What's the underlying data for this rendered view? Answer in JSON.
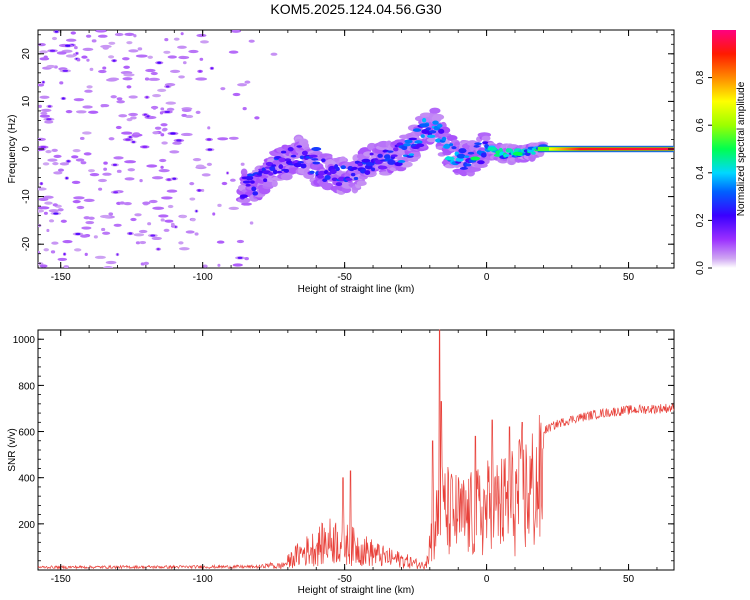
{
  "title": "KOM5.2025.124.04.56.G30",
  "chart_data": [
    {
      "type": "heatmap",
      "xlabel": "Height of straight line (km)",
      "ylabel": "Frequency (Hz)",
      "xlim": [
        -158,
        66
      ],
      "ylim": [
        -25,
        25
      ],
      "xticks": [
        -150,
        -100,
        -50,
        0,
        50
      ],
      "yticks": [
        -20,
        -10,
        0,
        10,
        20
      ],
      "colorbar": {
        "label": "Normalized spectral amplitude",
        "range": [
          0,
          1
        ],
        "ticks": [
          "0.0",
          "0.2",
          "0.4",
          "0.6",
          "0.8"
        ]
      },
      "trace": [
        {
          "x": -84,
          "y": -8
        },
        {
          "x": -78,
          "y": -6
        },
        {
          "x": -72,
          "y": -3
        },
        {
          "x": -66,
          "y": -1
        },
        {
          "x": -60,
          "y": -4
        },
        {
          "x": -54,
          "y": -5
        },
        {
          "x": -48,
          "y": -6
        },
        {
          "x": -42,
          "y": -3
        },
        {
          "x": -36,
          "y": -2
        },
        {
          "x": -30,
          "y": -1
        },
        {
          "x": -26,
          "y": 1
        },
        {
          "x": -22,
          "y": 4
        },
        {
          "x": -18,
          "y": 5
        },
        {
          "x": -14,
          "y": 0
        },
        {
          "x": -10,
          "y": -2
        },
        {
          "x": -6,
          "y": -2
        },
        {
          "x": 0,
          "y": 0
        },
        {
          "x": 6,
          "y": -1
        },
        {
          "x": 12,
          "y": -1
        },
        {
          "x": 18,
          "y": 0
        },
        {
          "x": 30,
          "y": 0
        },
        {
          "x": 45,
          "y": 0
        },
        {
          "x": 66,
          "y": 0
        }
      ]
    },
    {
      "type": "line",
      "xlabel": "Height of straight line (km)",
      "ylabel": "SNR (v/v)",
      "xlim": [
        -158,
        66
      ],
      "ylim": [
        0,
        1040
      ],
      "xticks": [
        -150,
        -100,
        -50,
        0,
        50
      ],
      "yticks": [
        200,
        400,
        600,
        800,
        1000
      ],
      "color": "#e8413a",
      "envelope": [
        {
          "x": -158,
          "y": 12
        },
        {
          "x": -80,
          "y": 14
        },
        {
          "x": -72,
          "y": 30
        },
        {
          "x": -66,
          "y": 110
        },
        {
          "x": -60,
          "y": 160
        },
        {
          "x": -54,
          "y": 210
        },
        {
          "x": -48,
          "y": 170
        },
        {
          "x": -42,
          "y": 130
        },
        {
          "x": -36,
          "y": 90
        },
        {
          "x": -30,
          "y": 70
        },
        {
          "x": -26,
          "y": 50
        },
        {
          "x": -22,
          "y": 30
        },
        {
          "x": -19,
          "y": 250
        },
        {
          "x": -16,
          "y": 420
        },
        {
          "x": -12,
          "y": 380
        },
        {
          "x": -8,
          "y": 360
        },
        {
          "x": -4,
          "y": 380
        },
        {
          "x": 0,
          "y": 420
        },
        {
          "x": 5,
          "y": 440
        },
        {
          "x": 10,
          "y": 480
        },
        {
          "x": 15,
          "y": 540
        },
        {
          "x": 20,
          "y": 610
        },
        {
          "x": 25,
          "y": 640
        },
        {
          "x": 30,
          "y": 660
        },
        {
          "x": 40,
          "y": 685
        },
        {
          "x": 50,
          "y": 700
        },
        {
          "x": 66,
          "y": 710
        }
      ],
      "peaks": [
        {
          "x": -16.5,
          "y": 1040
        },
        {
          "x": -16.0,
          "y": 730
        },
        {
          "x": -19.0,
          "y": 560
        },
        {
          "x": -48.0,
          "y": 430
        },
        {
          "x": -50.5,
          "y": 400
        },
        {
          "x": -4.0,
          "y": 580
        },
        {
          "x": 2.0,
          "y": 650
        },
        {
          "x": 8.0,
          "y": 620
        },
        {
          "x": 12.5,
          "y": 640
        }
      ]
    }
  ]
}
